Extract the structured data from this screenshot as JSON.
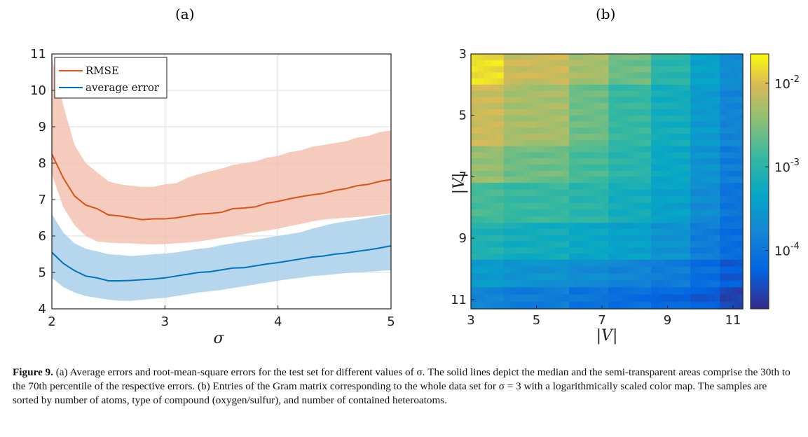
{
  "panel_a": {
    "label": "(a)"
  },
  "panel_b": {
    "label": "(b)"
  },
  "caption": {
    "figure_label": "Figure 9.",
    "text": "(a) Average errors and root-mean-square errors for the test set for different values of σ. The solid lines depict the median and the semi-transparent areas comprise the 30th to the 70th percentile of the respective errors. (b) Entries of the Gram matrix corresponding to the whole data set for σ = 3 with a logarithmically scaled color map. The samples are sorted by number of atoms, type of compound (oxygen/sulfur), and number of contained heteroatoms."
  },
  "chart_data": [
    {
      "type": "line",
      "panel": "(a)",
      "xlabel": "σ",
      "xlim": [
        2,
        5
      ],
      "ylim": [
        4,
        11
      ],
      "xticks": [
        "2",
        "3",
        "4",
        "5"
      ],
      "yticks": [
        "4",
        "5",
        "6",
        "7",
        "8",
        "9",
        "10",
        "11"
      ],
      "grid": true,
      "legend_placement": "top-left",
      "x": [
        2.0,
        2.1,
        2.2,
        2.3,
        2.4,
        2.5,
        2.6,
        2.7,
        2.8,
        2.9,
        3.0,
        3.1,
        3.2,
        3.3,
        3.4,
        3.5,
        3.6,
        3.7,
        3.8,
        3.9,
        4.0,
        4.1,
        4.2,
        4.3,
        4.4,
        4.5,
        4.6,
        4.7,
        4.8,
        4.9,
        5.0
      ],
      "series": [
        {
          "name": "RMSE",
          "color": "#d95319",
          "band_color": "#f2c2b0",
          "median": [
            8.25,
            7.6,
            7.1,
            6.85,
            6.75,
            6.58,
            6.55,
            6.5,
            6.45,
            6.47,
            6.47,
            6.5,
            6.55,
            6.6,
            6.62,
            6.65,
            6.75,
            6.77,
            6.8,
            6.9,
            6.95,
            7.02,
            7.08,
            7.13,
            7.17,
            7.25,
            7.3,
            7.38,
            7.42,
            7.5,
            7.55
          ],
          "p30": [
            7.7,
            6.8,
            6.3,
            6.0,
            5.85,
            5.82,
            5.8,
            5.8,
            5.78,
            5.77,
            5.78,
            5.8,
            5.82,
            5.85,
            5.9,
            5.95,
            6.0,
            6.05,
            6.1,
            6.15,
            6.2,
            6.27,
            6.33,
            6.4,
            6.45,
            6.48,
            6.5,
            6.52,
            6.55,
            6.58,
            6.62
          ],
          "p70": [
            10.9,
            9.6,
            8.5,
            8.0,
            7.75,
            7.5,
            7.42,
            7.38,
            7.35,
            7.35,
            7.42,
            7.45,
            7.6,
            7.7,
            7.78,
            7.85,
            7.95,
            8.0,
            8.05,
            8.15,
            8.2,
            8.3,
            8.35,
            8.45,
            8.5,
            8.55,
            8.6,
            8.7,
            8.75,
            8.85,
            8.9
          ]
        },
        {
          "name": "average error",
          "color": "#0072bd",
          "band_color": "#a9cfea",
          "median": [
            5.55,
            5.25,
            5.05,
            4.9,
            4.85,
            4.77,
            4.77,
            4.78,
            4.8,
            4.82,
            4.85,
            4.9,
            4.95,
            5.0,
            5.02,
            5.07,
            5.12,
            5.13,
            5.18,
            5.23,
            5.27,
            5.32,
            5.37,
            5.42,
            5.45,
            5.5,
            5.53,
            5.58,
            5.62,
            5.67,
            5.73
          ],
          "p30": [
            4.85,
            4.6,
            4.45,
            4.35,
            4.3,
            4.25,
            4.22,
            4.22,
            4.25,
            4.28,
            4.3,
            4.35,
            4.4,
            4.45,
            4.48,
            4.52,
            4.57,
            4.62,
            4.67,
            4.72,
            4.77,
            4.82,
            4.85,
            4.9,
            4.92,
            4.95,
            4.98,
            5.0,
            5.02,
            5.04,
            5.06
          ],
          "p70": [
            6.6,
            6.1,
            5.8,
            5.65,
            5.58,
            5.5,
            5.48,
            5.45,
            5.47,
            5.5,
            5.52,
            5.55,
            5.6,
            5.65,
            5.68,
            5.75,
            5.8,
            5.85,
            5.9,
            5.95,
            6.0,
            6.05,
            6.1,
            6.2,
            6.28,
            6.35,
            6.4,
            6.45,
            6.5,
            6.55,
            6.6
          ]
        }
      ]
    },
    {
      "type": "heatmap",
      "panel": "(b)",
      "xlabel": "|V|",
      "ylabel": "|V|",
      "xticks": [
        "3",
        "5",
        "7",
        "9",
        "11"
      ],
      "yticks": [
        "3",
        "5",
        "7",
        "9",
        "11"
      ],
      "tick_positions": [
        3,
        5,
        7,
        9,
        11
      ],
      "axis_range": [
        3,
        11.3
      ],
      "block_edges": [
        3,
        4,
        6,
        7.2,
        8.5,
        9.7,
        10.6,
        11.3
      ],
      "block_log10_levels": [
        [
          -1.8,
          -2.1,
          -2.3,
          -2.6,
          -3.0,
          -3.4,
          -3.7
        ],
        [
          -2.1,
          -2.3,
          -2.6,
          -2.9,
          -3.2,
          -3.5,
          -3.8
        ],
        [
          -2.4,
          -2.6,
          -2.8,
          -3.0,
          -3.3,
          -3.6,
          -3.9
        ],
        [
          -2.8,
          -2.9,
          -3.0,
          -3.2,
          -3.4,
          -3.7,
          -4.0
        ],
        [
          -3.1,
          -3.2,
          -3.3,
          -3.4,
          -3.6,
          -3.9,
          -4.1
        ],
        [
          -3.5,
          -3.6,
          -3.7,
          -3.8,
          -3.9,
          -4.1,
          -4.3
        ],
        [
          -3.8,
          -3.9,
          -4.0,
          -4.1,
          -4.2,
          -4.3,
          -4.5
        ]
      ],
      "colorbar": {
        "scale": "log",
        "range_log10": [
          -4.7,
          -1.65
        ],
        "ticks": [
          {
            "base": "10",
            "exp": "-2",
            "log10": -2
          },
          {
            "base": "10",
            "exp": "-3",
            "log10": -3
          },
          {
            "base": "10",
            "exp": "-4",
            "log10": -4
          }
        ],
        "colormap": "parula"
      }
    }
  ]
}
